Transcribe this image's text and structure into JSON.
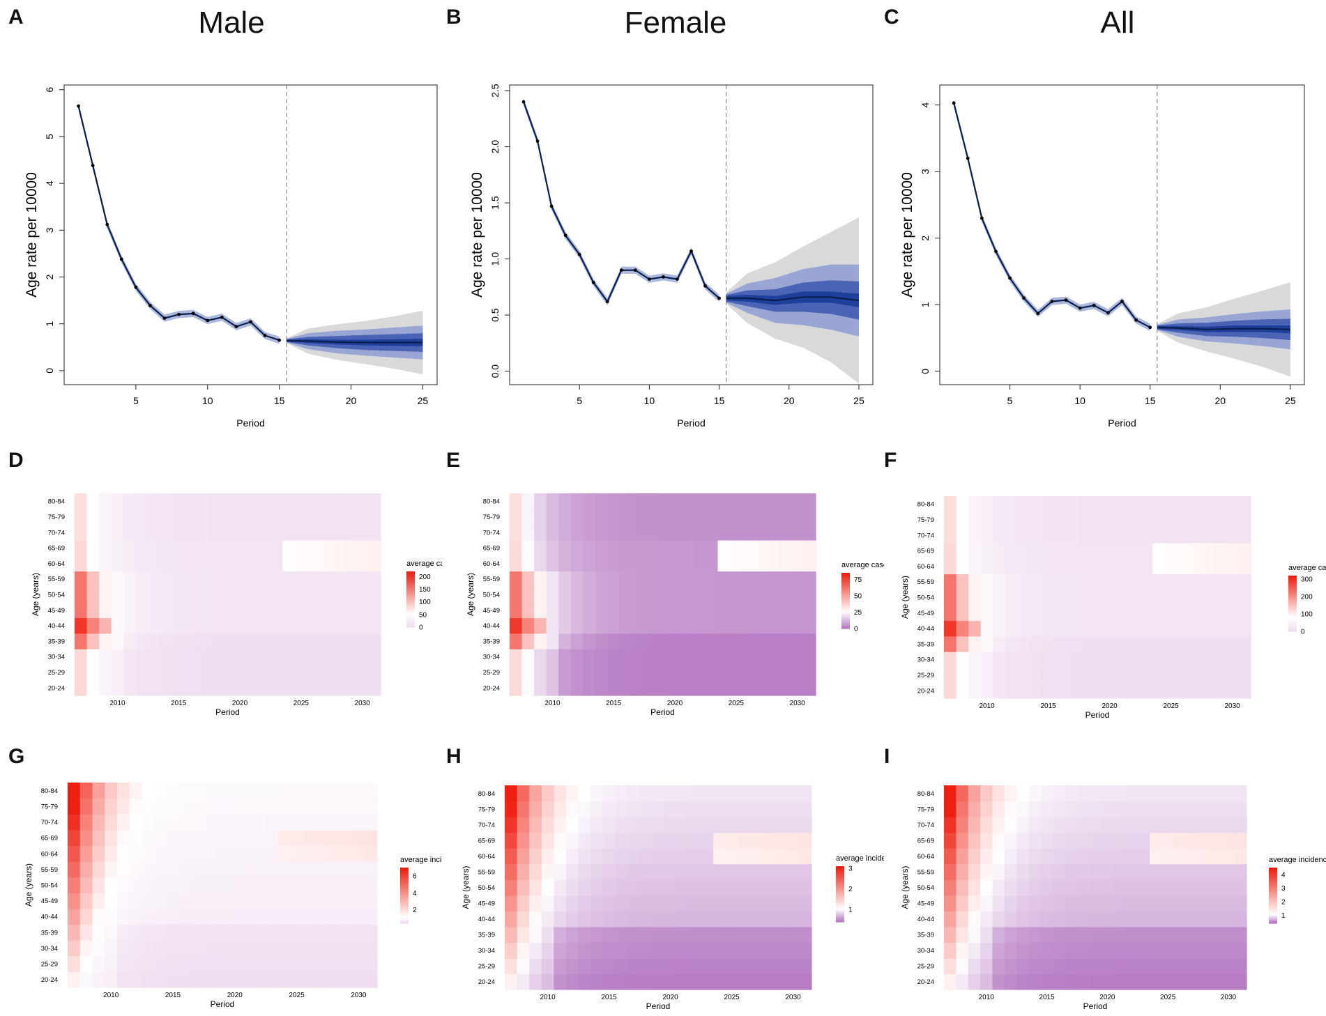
{
  "chart_data": [
    {
      "id": "A",
      "type": "line",
      "title": "Male",
      "xlabel": "Period",
      "ylabel": "Age rate per 10000",
      "xlim": [
        0,
        26
      ],
      "ylim": [
        -0.3,
        6.1
      ],
      "xticks": [
        5,
        10,
        15,
        20,
        25
      ],
      "yticks": [
        0,
        1,
        2,
        3,
        4,
        5,
        6
      ],
      "cutoff": 15.5,
      "observed": {
        "x": [
          1,
          2,
          3,
          4,
          5,
          6,
          7,
          8,
          9,
          10,
          11,
          12,
          13,
          14,
          15
        ],
        "y": [
          5.65,
          4.38,
          3.12,
          2.38,
          1.78,
          1.39,
          1.12,
          1.2,
          1.22,
          1.07,
          1.14,
          0.94,
          1.04,
          0.75,
          0.65
        ]
      },
      "projection": {
        "x": [
          15.5,
          17,
          19,
          21,
          23,
          25
        ],
        "mean": [
          0.64,
          0.63,
          0.61,
          0.6,
          0.6,
          0.6
        ],
        "band_widths": [
          [
            0.02,
            0.04,
            0.05,
            0.06,
            0.07,
            0.08
          ],
          [
            0.03,
            0.09,
            0.13,
            0.16,
            0.18,
            0.2
          ],
          [
            0.04,
            0.17,
            0.24,
            0.28,
            0.32,
            0.36
          ],
          [
            0.05,
            0.27,
            0.38,
            0.46,
            0.56,
            0.68
          ]
        ]
      }
    },
    {
      "id": "B",
      "type": "line",
      "title": "Female",
      "xlabel": "Period",
      "ylabel": "Age rate per 10000",
      "xlim": [
        0,
        26
      ],
      "ylim": [
        -0.12,
        2.55
      ],
      "xticks": [
        5,
        10,
        15,
        20,
        25
      ],
      "yticks": [
        0.0,
        0.5,
        1.0,
        1.5,
        2.0,
        2.5
      ],
      "cutoff": 15.5,
      "observed": {
        "x": [
          1,
          2,
          3,
          4,
          5,
          6,
          7,
          8,
          9,
          10,
          11,
          12,
          13,
          14,
          15
        ],
        "y": [
          2.4,
          2.05,
          1.47,
          1.21,
          1.04,
          0.79,
          0.62,
          0.9,
          0.9,
          0.82,
          0.84,
          0.82,
          1.07,
          0.76,
          0.65
        ]
      },
      "projection": {
        "x": [
          15.5,
          17,
          19,
          21,
          23,
          25
        ],
        "mean": [
          0.65,
          0.65,
          0.63,
          0.66,
          0.66,
          0.63
        ],
        "band_widths": [
          [
            0.02,
            0.03,
            0.04,
            0.05,
            0.05,
            0.06
          ],
          [
            0.03,
            0.07,
            0.1,
            0.13,
            0.15,
            0.17
          ],
          [
            0.04,
            0.13,
            0.2,
            0.25,
            0.29,
            0.32
          ],
          [
            0.05,
            0.22,
            0.34,
            0.45,
            0.58,
            0.74
          ]
        ]
      }
    },
    {
      "id": "C",
      "type": "line",
      "title": "All",
      "xlabel": "Period",
      "ylabel": "Age rate per 10000",
      "xlim": [
        0,
        26
      ],
      "ylim": [
        -0.2,
        4.3
      ],
      "xticks": [
        5,
        10,
        15,
        20,
        25
      ],
      "yticks": [
        0,
        1,
        2,
        3,
        4
      ],
      "cutoff": 15.5,
      "observed": {
        "x": [
          1,
          2,
          3,
          4,
          5,
          6,
          7,
          8,
          9,
          10,
          11,
          12,
          13,
          14,
          15
        ],
        "y": [
          4.03,
          3.2,
          2.3,
          1.8,
          1.4,
          1.1,
          0.87,
          1.05,
          1.07,
          0.95,
          0.99,
          0.88,
          1.05,
          0.77,
          0.66
        ]
      },
      "projection": {
        "x": [
          15.5,
          17,
          19,
          21,
          23,
          25
        ],
        "mean": [
          0.66,
          0.65,
          0.63,
          0.64,
          0.64,
          0.63
        ],
        "band_widths": [
          [
            0.02,
            0.03,
            0.04,
            0.05,
            0.05,
            0.06
          ],
          [
            0.03,
            0.07,
            0.1,
            0.12,
            0.14,
            0.16
          ],
          [
            0.04,
            0.13,
            0.18,
            0.22,
            0.26,
            0.3
          ],
          [
            0.05,
            0.22,
            0.33,
            0.45,
            0.57,
            0.71
          ]
        ]
      }
    },
    {
      "id": "D",
      "type": "heatmap",
      "xlabel": "Period",
      "ylabel": "Age (years)",
      "ages": [
        "20-24",
        "25-29",
        "30-34",
        "35-39",
        "40-44",
        "45-49",
        "50-54",
        "55-59",
        "60-64",
        "65-69",
        "70-74",
        "75-79",
        "80-84"
      ],
      "xticks": [
        2010,
        2015,
        2020,
        2025,
        2030
      ],
      "year_range": [
        2007,
        2031
      ],
      "palette": "white-red",
      "legend": {
        "title": "average case",
        "min": 0,
        "max": 220,
        "mid": 50,
        "ticks": [
          0,
          50,
          100,
          150,
          200
        ]
      }
    },
    {
      "id": "E",
      "type": "heatmap",
      "xlabel": "Period",
      "ylabel": "Age (years)",
      "ages": [
        "20-24",
        "25-29",
        "30-34",
        "35-39",
        "40-44",
        "45-49",
        "50-54",
        "55-59",
        "60-64",
        "65-69",
        "70-74",
        "75-79",
        "80-84"
      ],
      "xticks": [
        2010,
        2015,
        2020,
        2025,
        2030
      ],
      "year_range": [
        2007,
        2031
      ],
      "palette": "purple-white-red",
      "legend": {
        "title": "average case",
        "min": 0,
        "max": 85,
        "mid": 25,
        "ticks": [
          0,
          25,
          50,
          75
        ]
      }
    },
    {
      "id": "F",
      "type": "heatmap",
      "xlabel": "Period",
      "ylabel": "Age (years)",
      "ages": [
        "20-24",
        "25-29",
        "30-34",
        "35-39",
        "40-44",
        "45-49",
        "50-54",
        "55-59",
        "60-64",
        "65-69",
        "70-74",
        "75-79",
        "80-84"
      ],
      "xticks": [
        2010,
        2015,
        2020,
        2025,
        2030
      ],
      "year_range": [
        2007,
        2031
      ],
      "palette": "white-red",
      "legend": {
        "title": "average case",
        "min": 0,
        "max": 320,
        "mid": 80,
        "ticks": [
          0,
          100,
          200,
          300
        ]
      }
    },
    {
      "id": "G",
      "type": "heatmap",
      "xlabel": "Period",
      "ylabel": "Age (years)",
      "ages": [
        "20-24",
        "25-29",
        "30-34",
        "35-39",
        "40-44",
        "45-49",
        "50-54",
        "55-59",
        "60-64",
        "65-69",
        "70-74",
        "75-79",
        "80-84"
      ],
      "xticks": [
        2010,
        2015,
        2020,
        2025,
        2030
      ],
      "year_range": [
        2007,
        2031
      ],
      "palette": "white-red",
      "legend": {
        "title": "average incidence",
        "min": 0.4,
        "max": 7,
        "mid": 1,
        "ticks": [
          2,
          4,
          6
        ]
      }
    },
    {
      "id": "H",
      "type": "heatmap",
      "xlabel": "Period",
      "ylabel": "Age (years)",
      "ages": [
        "20-24",
        "25-29",
        "30-34",
        "35-39",
        "40-44",
        "45-49",
        "50-54",
        "55-59",
        "60-64",
        "65-69",
        "70-74",
        "75-79",
        "80-84"
      ],
      "xticks": [
        2010,
        2015,
        2020,
        2025,
        2030
      ],
      "year_range": [
        2007,
        2031
      ],
      "palette": "purple-white-red",
      "legend": {
        "title": "average incidence",
        "min": 0.4,
        "max": 3.1,
        "mid": 1,
        "ticks": [
          1,
          2,
          3
        ]
      }
    },
    {
      "id": "I",
      "type": "heatmap",
      "xlabel": "Period",
      "ylabel": "Age (years)",
      "ages": [
        "20-24",
        "25-29",
        "30-34",
        "35-39",
        "40-44",
        "45-49",
        "50-54",
        "55-59",
        "60-64",
        "65-69",
        "70-74",
        "75-79",
        "80-84"
      ],
      "xticks": [
        2010,
        2015,
        2020,
        2025,
        2030
      ],
      "year_range": [
        2007,
        2031
      ],
      "palette": "purple-white-red",
      "legend": {
        "title": "average incidence",
        "min": 0.4,
        "max": 4.5,
        "mid": 1,
        "ticks": [
          1,
          2,
          3,
          4
        ]
      }
    }
  ],
  "colors": {
    "line": "#0b1f4f",
    "band_inner": "#1e3f9a",
    "band_2": "#4a63b4",
    "band_3": "#99a6d4",
    "band_outer": "#d9d9d9",
    "cutoff": "#8a8a8a",
    "heat_high": "#ee1e10",
    "heat_mid": "#ffffff",
    "heat_low": "#b77cc4"
  }
}
